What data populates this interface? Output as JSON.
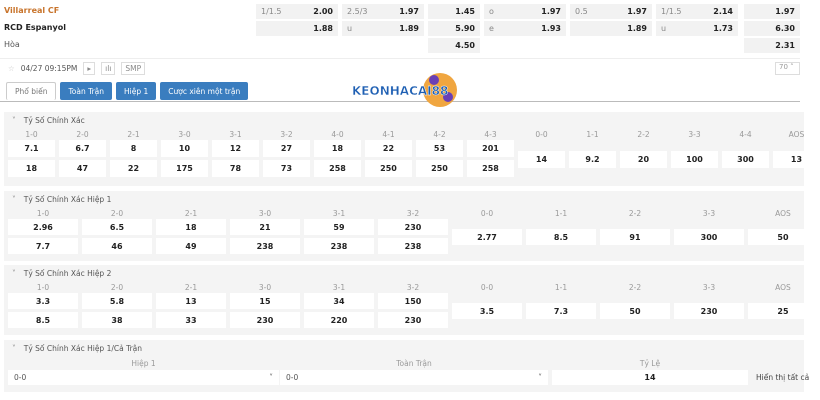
{
  "match": {
    "home": "Villarreal CF",
    "away": "RCD Espanyol",
    "draw": "Hòa",
    "home_color": "#c8742c",
    "odds": [
      [
        [
          "1/1.5",
          "2.00"
        ],
        [
          "2.5/3",
          "1.97"
        ],
        [
          "",
          "1.45"
        ],
        [
          "o",
          "1.97"
        ],
        [
          "0.5",
          "1.97"
        ],
        [
          "1/1.5",
          "2.14"
        ],
        [
          "",
          "1.97"
        ]
      ],
      [
        [
          "",
          "1.88"
        ],
        [
          "u",
          "1.89"
        ],
        [
          "",
          "5.90"
        ],
        [
          "e",
          "1.93"
        ],
        [
          "",
          "1.89"
        ],
        [
          "u",
          "1.73"
        ],
        [
          "",
          "6.30"
        ]
      ],
      [
        null,
        null,
        [
          "",
          "4.50"
        ],
        null,
        null,
        null,
        [
          "",
          "2.31"
        ]
      ]
    ]
  },
  "toolbar": {
    "datetime": "04/27 09:15PM",
    "smp": "SMP",
    "page_size": "70",
    "star_icon": "star-icon",
    "play_icon": "play-icon",
    "stats_icon": "bar-chart-icon"
  },
  "tabs": [
    {
      "label": "Phổ biến",
      "active": true
    },
    {
      "label": "Toàn Trận"
    },
    {
      "label": "Hiệp 1"
    },
    {
      "label": "Cược xiên một trận"
    }
  ],
  "logo": "KEONHACAI88",
  "sections": [
    {
      "title": "Tỷ Số Chính Xác",
      "cols": [
        "1-0",
        "2-0",
        "2-1",
        "3-0",
        "3-1",
        "3-2",
        "4-0",
        "4-1",
        "4-2",
        "4-3",
        "0-0",
        "1-1",
        "2-2",
        "3-3",
        "4-4",
        "AOS"
      ],
      "row1": [
        "7.1",
        "6.7",
        "8",
        "10",
        "12",
        "27",
        "18",
        "22",
        "53",
        "201"
      ],
      "row2": [
        "18",
        "47",
        "22",
        "175",
        "78",
        "73",
        "258",
        "250",
        "250",
        "258"
      ],
      "draws": [
        "14",
        "9.2",
        "20",
        "100",
        "300",
        "13"
      ]
    },
    {
      "title": "Tỷ Số Chính Xác Hiệp 1",
      "cols": [
        "1-0",
        "2-0",
        "2-1",
        "3-0",
        "3-1",
        "3-2",
        "0-0",
        "1-1",
        "2-2",
        "3-3",
        "AOS"
      ],
      "row1": [
        "2.96",
        "6.5",
        "18",
        "21",
        "59",
        "230"
      ],
      "row2": [
        "7.7",
        "46",
        "49",
        "238",
        "238",
        "238"
      ],
      "draws": [
        "2.77",
        "8.5",
        "91",
        "300",
        "50"
      ]
    },
    {
      "title": "Tỷ Số Chính Xác Hiệp 2",
      "cols": [
        "1-0",
        "2-0",
        "2-1",
        "3-0",
        "3-1",
        "3-2",
        "0-0",
        "1-1",
        "2-2",
        "3-3",
        "AOS"
      ],
      "row1": [
        "3.3",
        "5.8",
        "13",
        "15",
        "34",
        "150"
      ],
      "row2": [
        "8.5",
        "38",
        "33",
        "230",
        "220",
        "230"
      ],
      "draws": [
        "3.5",
        "7.3",
        "50",
        "230",
        "25"
      ]
    }
  ],
  "htft": {
    "title": "Tỷ Số Chính Xác Hiệp 1/Cả Trận",
    "col1": "Hiệp 1",
    "col2": "Toàn Trận",
    "col3": "Tỷ Lệ",
    "sel1": "0-0",
    "sel2": "0-0",
    "odds": "14",
    "show_all": "Hiển thị tất cả"
  }
}
